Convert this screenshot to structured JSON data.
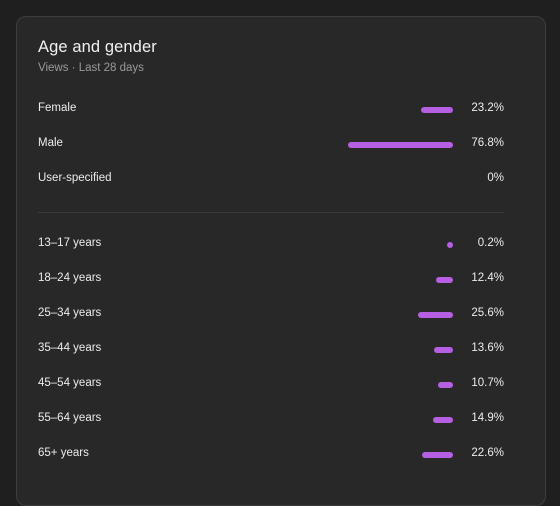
{
  "card": {
    "title": "Age and gender",
    "subtitle": "Views · Last 28 days"
  },
  "colors": {
    "bar": "#b65fe3",
    "background": "#282828",
    "text": "#ececec",
    "muted": "#9a9a9a"
  },
  "gender": [
    {
      "label": "Female",
      "value": "23.2%",
      "percent": 23.2
    },
    {
      "label": "Male",
      "value": "76.8%",
      "percent": 76.8
    },
    {
      "label": "User-specified",
      "value": "0%",
      "percent": 0
    }
  ],
  "age": [
    {
      "label": "13–17 years",
      "value": "0.2%",
      "percent": 0.2
    },
    {
      "label": "18–24 years",
      "value": "12.4%",
      "percent": 12.4
    },
    {
      "label": "25–34 years",
      "value": "25.6%",
      "percent": 25.6
    },
    {
      "label": "35–44 years",
      "value": "13.6%",
      "percent": 13.6
    },
    {
      "label": "45–54 years",
      "value": "10.7%",
      "percent": 10.7
    },
    {
      "label": "55–64 years",
      "value": "14.9%",
      "percent": 14.9
    },
    {
      "label": "65+ years",
      "value": "22.6%",
      "percent": 22.6
    }
  ]
}
